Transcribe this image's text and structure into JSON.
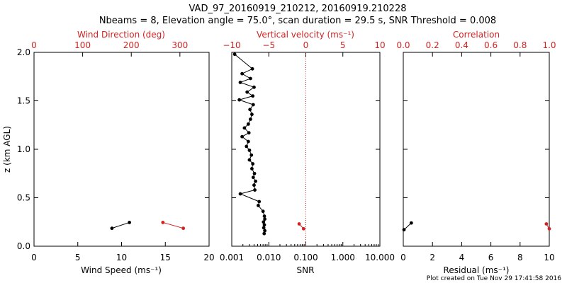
{
  "title_line1": "VAD_97_20160919_210212, 20160919.210228",
  "title_line2": "Nbeams = 8, Elevation angle = 75.0°, scan duration = 29.5 s, SNR Threshold = 0.008",
  "footer": "Plot created on Tue Nov 29 17:41:58 2016",
  "colors": {
    "black": "#000000",
    "red": "#d22222"
  },
  "chart_data": [
    {
      "type": "line",
      "ylabel": "z (km AGL)",
      "ylim": [
        0,
        2.0
      ],
      "yticks": [
        "0.0",
        "0.5",
        "1.0",
        "1.5",
        "2.0"
      ],
      "bottom_axis": {
        "label": "Wind Speed (ms⁻¹)",
        "range": [
          0,
          20
        ],
        "ticks": [
          "0",
          "5",
          "10",
          "15",
          "20"
        ]
      },
      "top_axis": {
        "label": "Wind Direction (deg)",
        "range": [
          0,
          360
        ],
        "ticks": [
          "0",
          "100",
          "200",
          "300"
        ],
        "color": "#d22222"
      },
      "series": [
        {
          "axis": "bottom",
          "color": "#000000",
          "points": [
            [
              8.9,
              0.185
            ],
            [
              10.9,
              0.245
            ]
          ]
        },
        {
          "axis": "top",
          "color": "#d22222",
          "points": [
            [
              265,
              0.245
            ],
            [
              307,
              0.185
            ]
          ]
        }
      ]
    },
    {
      "type": "line",
      "ylim": [
        0,
        2.0
      ],
      "bottom_axis": {
        "label": "SNR",
        "scale": "log",
        "range": [
          0.001,
          10
        ],
        "ticks": [
          "0.001",
          "0.010",
          "0.100",
          "1.000",
          "10.000"
        ]
      },
      "top_axis": {
        "label": "Vertical velocity (ms⁻¹)",
        "range": [
          -10,
          10
        ],
        "ticks": [
          "−10",
          "−5",
          "0",
          "5",
          "10"
        ],
        "color": "#d22222"
      },
      "zero_line": {
        "axis": "top",
        "value": 0,
        "style": "dotted",
        "color": "#d22222"
      },
      "series": [
        {
          "axis": "bottom",
          "color": "#000000",
          "points": [
            [
              0.0075,
              0.13
            ],
            [
              0.0078,
              0.16
            ],
            [
              0.0073,
              0.19
            ],
            [
              0.0076,
              0.22
            ],
            [
              0.0072,
              0.25
            ],
            [
              0.0078,
              0.28
            ],
            [
              0.0076,
              0.31
            ],
            [
              0.007,
              0.36
            ],
            [
              0.0052,
              0.42
            ],
            [
              0.0055,
              0.46
            ],
            [
              0.0017,
              0.54
            ],
            [
              0.0042,
              0.58
            ],
            [
              0.004,
              0.63
            ],
            [
              0.0044,
              0.67
            ],
            [
              0.0038,
              0.71
            ],
            [
              0.0041,
              0.75
            ],
            [
              0.0035,
              0.8
            ],
            [
              0.0037,
              0.85
            ],
            [
              0.003,
              0.89
            ],
            [
              0.0034,
              0.94
            ],
            [
              0.003,
              0.99
            ],
            [
              0.0025,
              1.03
            ],
            [
              0.0028,
              1.08
            ],
            [
              0.0019,
              1.13
            ],
            [
              0.0029,
              1.17
            ],
            [
              0.0022,
              1.22
            ],
            [
              0.0028,
              1.26
            ],
            [
              0.0032,
              1.31
            ],
            [
              0.0035,
              1.36
            ],
            [
              0.0031,
              1.41
            ],
            [
              0.0038,
              1.46
            ],
            [
              0.0016,
              1.51
            ],
            [
              0.0037,
              1.55
            ],
            [
              0.0026,
              1.59
            ],
            [
              0.004,
              1.64
            ],
            [
              0.0017,
              1.69
            ],
            [
              0.0032,
              1.73
            ],
            [
              0.0019,
              1.78
            ],
            [
              0.0036,
              1.83
            ],
            [
              0.0012,
              1.98
            ]
          ]
        },
        {
          "axis": "top",
          "color": "#d22222",
          "points": [
            [
              -0.9,
              0.23
            ],
            [
              -0.3,
              0.18
            ]
          ]
        }
      ]
    },
    {
      "type": "line",
      "ylim": [
        0,
        2.0
      ],
      "bottom_axis": {
        "label": "Residual (ms⁻¹)",
        "range": [
          0,
          10
        ],
        "ticks": [
          "0",
          "2",
          "4",
          "6",
          "8",
          "10"
        ]
      },
      "top_axis": {
        "label": "Correlation",
        "range": [
          0,
          1.0
        ],
        "ticks": [
          "0.0",
          "0.2",
          "0.4",
          "0.6",
          "0.8",
          "1.0"
        ],
        "color": "#d22222"
      },
      "series": [
        {
          "axis": "bottom",
          "color": "#000000",
          "points": [
            [
              0.05,
              0.17
            ],
            [
              0.55,
              0.24
            ]
          ]
        },
        {
          "axis": "top",
          "color": "#d22222",
          "points": [
            [
              0.98,
              0.23
            ],
            [
              1.0,
              0.18
            ]
          ]
        }
      ]
    }
  ]
}
